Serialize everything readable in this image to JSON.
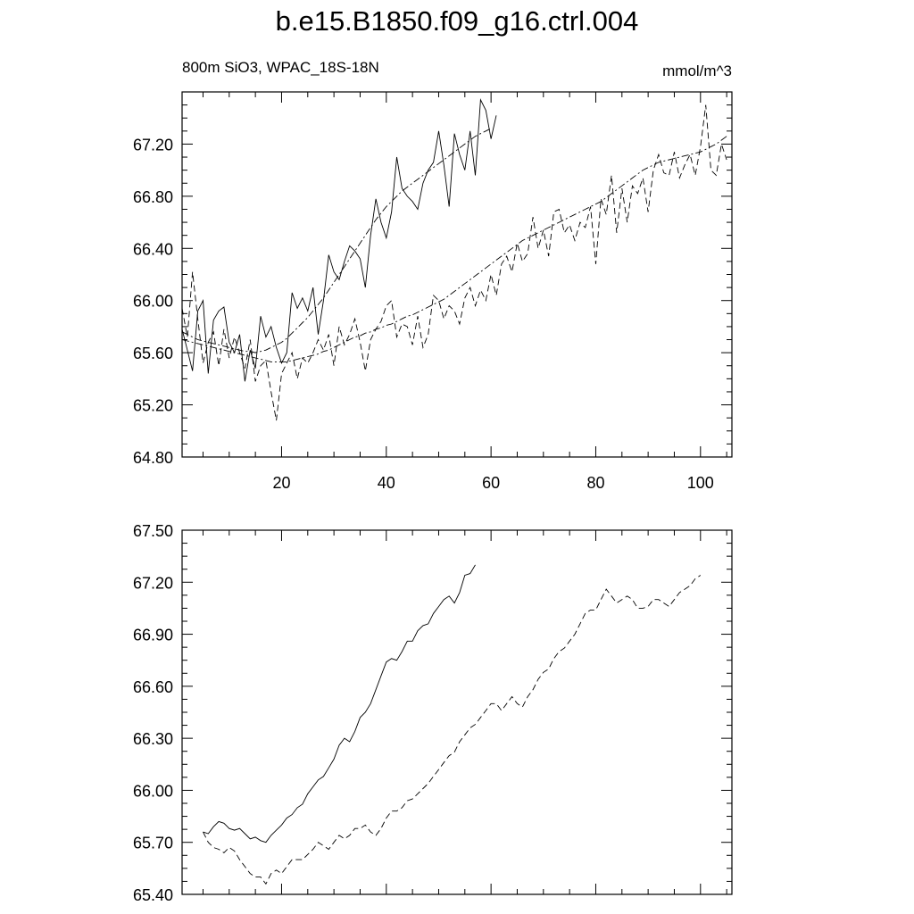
{
  "title": "b.e15.B1850.f09_g16.ctrl.004",
  "subtitle_left": "800m SiO3, WPAC_18S-18N",
  "subtitle_right": "mmol/m^3",
  "chart_data": [
    {
      "type": "line",
      "title": "",
      "xlabel": "",
      "ylabel": "",
      "xlim": [
        1,
        106
      ],
      "ylim": [
        64.8,
        67.6
      ],
      "xticks": [
        20,
        40,
        60,
        80,
        100
      ],
      "yticks": [
        64.8,
        65.2,
        65.6,
        66.0,
        66.4,
        66.8,
        67.2
      ],
      "ytick_labels": [
        "64.80",
        "65.20",
        "65.60",
        "66.00",
        "66.40",
        "66.80",
        "67.20"
      ],
      "grid": false,
      "legend": "none",
      "series": [
        {
          "style": "solid",
          "x_start": 1,
          "values": [
            65.78,
            65.62,
            65.46,
            65.92,
            66.0,
            65.44,
            65.85,
            65.92,
            65.95,
            65.68,
            65.6,
            65.74,
            65.38,
            65.62,
            65.48,
            65.88,
            65.72,
            65.8,
            65.64,
            65.52,
            65.6,
            66.06,
            65.94,
            66.02,
            65.92,
            66.1,
            65.74,
            66.0,
            66.35,
            66.22,
            66.16,
            66.3,
            66.42,
            66.38,
            66.32,
            66.1,
            66.5,
            66.78,
            66.6,
            66.48,
            66.68,
            67.1,
            66.86,
            66.8,
            66.76,
            66.7,
            66.9,
            67.0,
            67.06,
            67.3,
            67.04,
            66.72,
            67.28,
            67.12,
            67.0,
            67.3,
            66.96,
            67.54,
            67.46,
            67.24,
            67.42
          ]
        },
        {
          "style": "dash-dot",
          "x_start": 1,
          "values": [
            65.76,
            65.74,
            65.72,
            65.7,
            65.69,
            65.68,
            65.67,
            65.66,
            65.65,
            65.64,
            65.63,
            65.62,
            65.61,
            65.61,
            65.6,
            65.61,
            65.62,
            65.64,
            65.66,
            65.68,
            65.71,
            65.75,
            65.79,
            65.83,
            65.87,
            65.92,
            65.97,
            66.02,
            66.08,
            66.14,
            66.2,
            66.26,
            66.32,
            66.38,
            66.44,
            66.5,
            66.56,
            66.62,
            66.67,
            66.72,
            66.76,
            66.8,
            66.84,
            66.87,
            66.9,
            66.93,
            66.96,
            66.99,
            67.02,
            67.05,
            67.08,
            67.11,
            67.14,
            67.17,
            67.2,
            67.23,
            67.26,
            67.28,
            67.3,
            67.32
          ]
        },
        {
          "style": "dashed",
          "x_start": 1,
          "values": [
            65.94,
            65.72,
            66.22,
            65.86,
            65.52,
            65.68,
            65.76,
            65.5,
            65.78,
            65.56,
            65.72,
            65.6,
            65.48,
            65.7,
            65.38,
            65.5,
            65.54,
            65.3,
            65.08,
            65.44,
            65.52,
            65.6,
            65.4,
            65.56,
            65.52,
            65.6,
            65.7,
            65.62,
            65.74,
            65.5,
            65.8,
            65.66,
            65.74,
            65.86,
            65.68,
            65.46,
            65.7,
            65.78,
            65.84,
            65.96,
            66.0,
            65.72,
            65.82,
            65.8,
            65.66,
            65.88,
            65.64,
            65.74,
            66.04,
            66.0,
            65.86,
            65.96,
            65.92,
            65.82,
            66.02,
            66.1,
            65.96,
            66.08,
            66.0,
            66.2,
            66.04,
            66.28,
            66.34,
            66.22,
            66.44,
            66.3,
            66.36,
            66.64,
            66.4,
            66.54,
            66.34,
            66.68,
            66.7,
            66.52,
            66.58,
            66.46,
            66.6,
            66.56,
            66.72,
            66.28,
            66.78,
            66.66,
            66.96,
            66.52,
            66.86,
            66.6,
            66.88,
            66.82,
            66.94,
            66.68,
            67.0,
            67.12,
            66.98,
            66.96,
            67.14,
            66.94,
            67.04,
            67.12,
            66.96,
            67.18,
            67.5,
            67.0,
            66.96,
            67.2,
            67.08
          ]
        },
        {
          "style": "dash-dot",
          "x_start": 1,
          "values": [
            65.7,
            65.69,
            65.68,
            65.67,
            65.66,
            65.65,
            65.64,
            65.63,
            65.62,
            65.61,
            65.6,
            65.59,
            65.58,
            65.57,
            65.56,
            65.55,
            65.54,
            65.53,
            65.53,
            65.53,
            65.53,
            65.54,
            65.55,
            65.56,
            65.57,
            65.58,
            65.59,
            65.61,
            65.62,
            65.64,
            65.66,
            65.68,
            65.7,
            65.72,
            65.73,
            65.75,
            65.76,
            65.78,
            65.79,
            65.81,
            65.82,
            65.84,
            65.86,
            65.88,
            65.89,
            65.91,
            65.93,
            65.95,
            65.97,
            65.99,
            66.01,
            66.04,
            66.07,
            66.1,
            66.13,
            66.16,
            66.19,
            66.22,
            66.25,
            66.28,
            66.31,
            66.34,
            66.37,
            66.4,
            66.43,
            66.46,
            66.48,
            66.5,
            66.52,
            66.54,
            66.56,
            66.58,
            66.6,
            66.62,
            66.64,
            66.66,
            66.68,
            66.7,
            66.72,
            66.74,
            66.76,
            66.79,
            66.82,
            66.85,
            66.88,
            66.91,
            66.94,
            66.97,
            67.0,
            67.02,
            67.04,
            67.06,
            67.07,
            67.08,
            67.09,
            67.1,
            67.11,
            67.12,
            67.13,
            67.14,
            67.16,
            67.18,
            67.2,
            67.23,
            67.26
          ]
        }
      ]
    },
    {
      "type": "line",
      "title": "",
      "xlabel": "",
      "ylabel": "",
      "xlim": [
        1,
        106
      ],
      "ylim": [
        65.4,
        67.5
      ],
      "xticks": [
        20,
        40,
        60,
        80,
        100
      ],
      "yticks": [
        65.4,
        65.7,
        66.0,
        66.3,
        66.6,
        66.9,
        67.2,
        67.5
      ],
      "ytick_labels": [
        "65.40",
        "65.70",
        "66.00",
        "66.30",
        "66.60",
        "66.90",
        "67.20",
        "67.50"
      ],
      "grid": false,
      "legend": "none",
      "series": [
        {
          "style": "solid",
          "x_start": 5,
          "values": [
            65.76,
            65.75,
            65.79,
            65.82,
            65.81,
            65.78,
            65.77,
            65.78,
            65.75,
            65.72,
            65.73,
            65.71,
            65.7,
            65.74,
            65.77,
            65.8,
            65.84,
            65.86,
            65.9,
            65.92,
            65.98,
            66.02,
            66.06,
            66.08,
            66.13,
            66.18,
            66.26,
            66.3,
            66.28,
            66.34,
            66.42,
            66.45,
            66.5,
            66.58,
            66.66,
            66.74,
            66.76,
            66.75,
            66.8,
            66.86,
            66.86,
            66.92,
            66.95,
            66.96,
            67.02,
            67.06,
            67.1,
            67.12,
            67.08,
            67.14,
            67.24,
            67.25,
            67.3
          ]
        },
        {
          "style": "dashed",
          "x_start": 5,
          "values": [
            65.76,
            65.7,
            65.67,
            65.66,
            65.64,
            65.67,
            65.65,
            65.6,
            65.56,
            65.52,
            65.5,
            65.5,
            65.46,
            65.52,
            65.54,
            65.52,
            65.56,
            65.6,
            65.6,
            65.6,
            65.63,
            65.66,
            65.7,
            65.68,
            65.66,
            65.7,
            65.74,
            65.72,
            65.74,
            65.78,
            65.78,
            65.8,
            65.76,
            65.74,
            65.78,
            65.84,
            65.88,
            65.88,
            65.9,
            65.94,
            65.95,
            65.98,
            66.01,
            66.04,
            66.08,
            66.12,
            66.16,
            66.2,
            66.22,
            66.28,
            66.32,
            66.36,
            66.38,
            66.42,
            66.46,
            66.5,
            66.5,
            66.46,
            66.5,
            66.54,
            66.5,
            66.48,
            66.54,
            66.58,
            66.64,
            66.68,
            66.7,
            66.76,
            66.8,
            66.82,
            66.86,
            66.9,
            66.96,
            67.02,
            67.04,
            67.04,
            67.1,
            67.16,
            67.12,
            67.08,
            67.1,
            67.12,
            67.1,
            67.05,
            67.05,
            67.06,
            67.1,
            67.1,
            67.08,
            67.06,
            67.1,
            67.14,
            67.16,
            67.18,
            67.22,
            67.24
          ]
        }
      ]
    }
  ]
}
